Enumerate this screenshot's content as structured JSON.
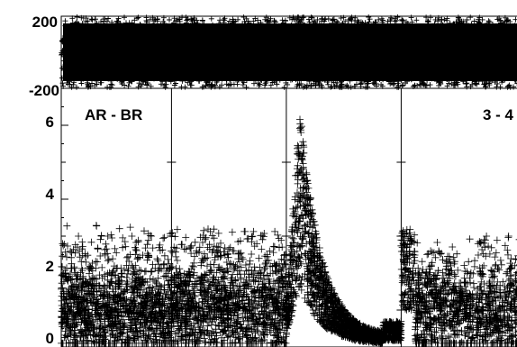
{
  "chart_data": [
    {
      "type": "scatter",
      "panel": "top",
      "ylim": [
        -200,
        200
      ],
      "yticks": [
        "200",
        "-200"
      ],
      "grid": false,
      "markers": "plus",
      "series": [
        {
          "values_summary": "dense band filling the full range across all sessions",
          "x_range": [
            0,
            1
          ],
          "y_range": [
            -200,
            200
          ]
        }
      ]
    },
    {
      "type": "scatter",
      "panel": "bottom",
      "ylim": [
        0,
        7
      ],
      "yticks": [
        "0",
        "2",
        "4",
        "6"
      ],
      "grid": false,
      "markers": "plus",
      "session_boundaries_fraction": [
        0.0,
        0.24,
        0.49,
        0.74
      ],
      "annotations": [
        "AR - BR",
        "3 - 4"
      ],
      "segments": [
        {
          "session": 1,
          "x_start": 0.0,
          "x_end": 0.24,
          "baseline_min": 0.1,
          "baseline_typical": 1.0,
          "upper_typical": 2.4,
          "peak": 3.3
        },
        {
          "session": 2,
          "x_start": 0.24,
          "x_end": 0.49,
          "baseline_min": 0.1,
          "baseline_typical": 1.1,
          "upper_typical": 2.5,
          "peak": 3.2
        },
        {
          "session": 3,
          "x_start": 0.49,
          "x_end": 0.74,
          "burst_peak": 6.5,
          "burst_position": 0.52,
          "decay_end": 0.7,
          "end_level": 0.3
        },
        {
          "session": 4,
          "x_start": 0.74,
          "x_end": 1.0,
          "initial_peak": 3.2,
          "baseline_typical": 1.0,
          "upper_typical": 2.4
        }
      ]
    }
  ]
}
